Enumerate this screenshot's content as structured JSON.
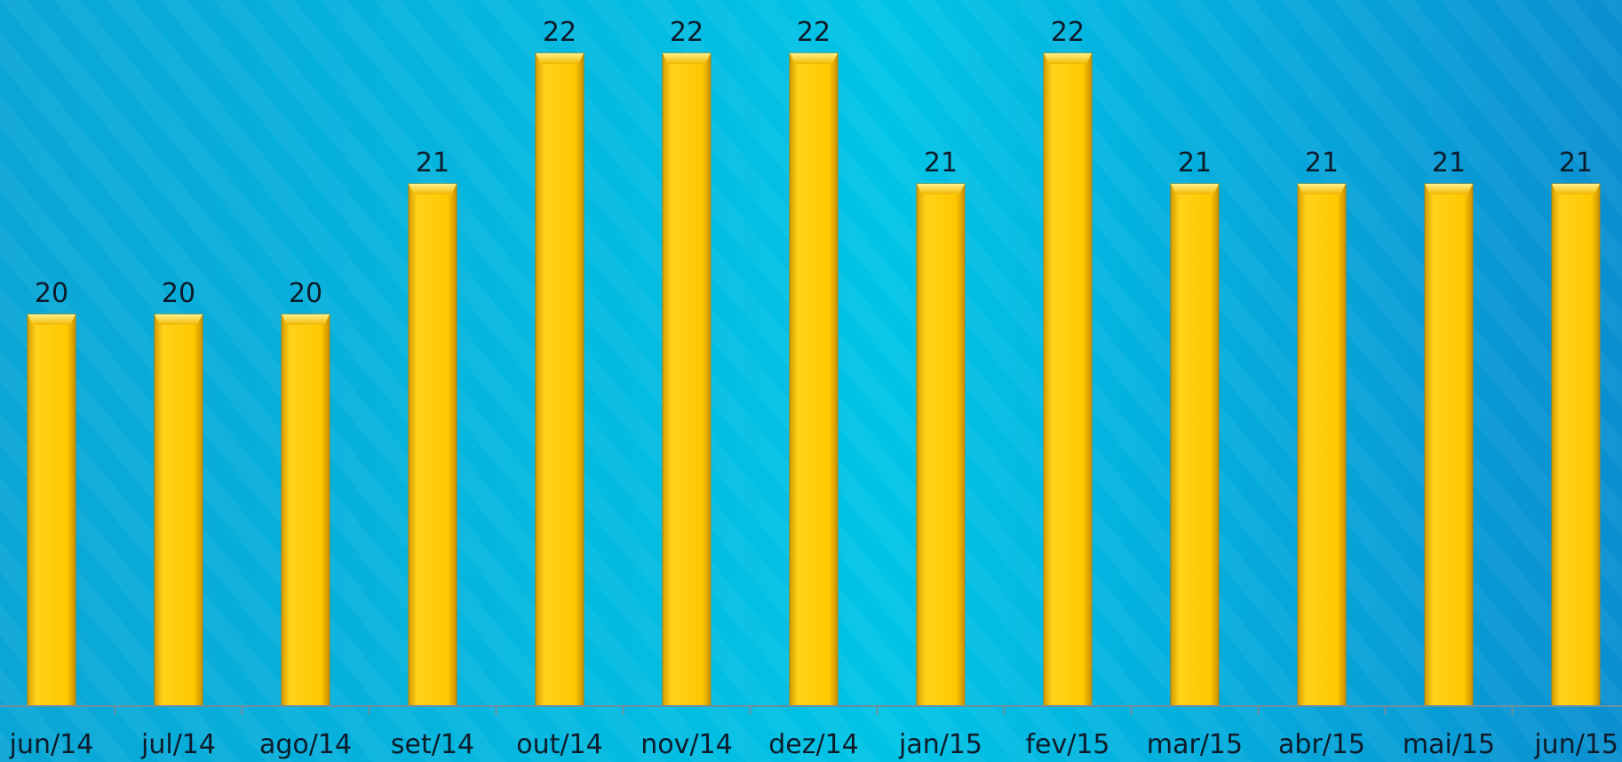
{
  "chart_data": {
    "type": "bar",
    "categories": [
      "jun/14",
      "jul/14",
      "ago/14",
      "set/14",
      "out/14",
      "nov/14",
      "dez/14",
      "jan/15",
      "fev/15",
      "mar/15",
      "abr/15",
      "mai/15",
      "jun/15"
    ],
    "values": [
      20,
      20,
      20,
      21,
      22,
      22,
      22,
      21,
      22,
      21,
      21,
      21,
      21
    ],
    "title": "",
    "xlabel": "",
    "ylabel": "",
    "ylim": [
      17,
      22
    ],
    "grid": false,
    "data_labels": true,
    "bar_color": "#FFC800",
    "background_color": "#00B4E0"
  }
}
